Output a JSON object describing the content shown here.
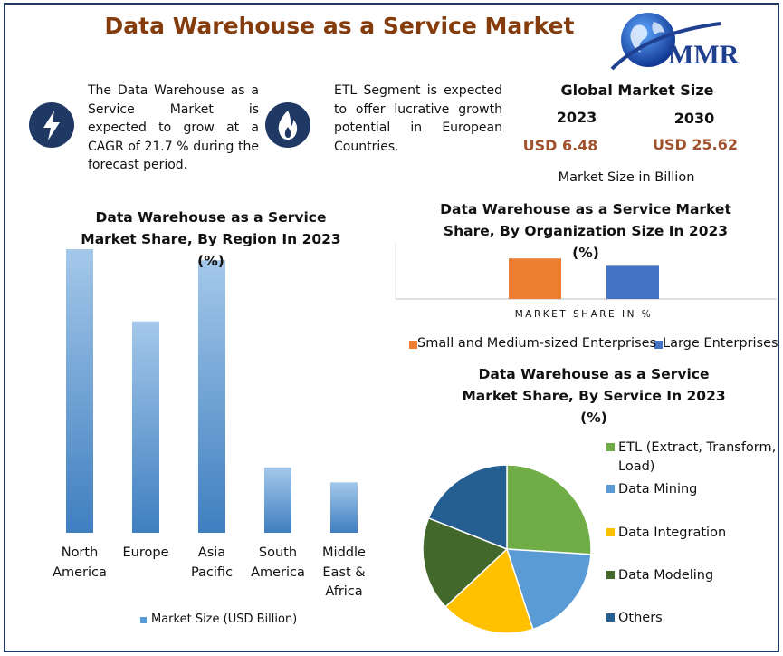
{
  "title": "Data Warehouse as a Service Market",
  "logo": "MMR",
  "highlights": [
    "The Data Warehouse as a Service Market is expected to grow at a CAGR of 21.7 % during the forecast period.",
    "ETL Segment is expected to offer lucrative growth potential in European Countries."
  ],
  "market_size": {
    "heading": "Global Market Size",
    "years": [
      "2023",
      "2030"
    ],
    "amounts": [
      "USD 6.48",
      "USD 25.62"
    ],
    "note": "Market Size in Billion"
  },
  "chart_data": [
    {
      "type": "bar",
      "title": "Data Warehouse as a Service Market Share, By Region In 2023 (%)",
      "categories": [
        "North\nAmerica",
        "Europe",
        "Asia\nPacific",
        "South\nAmerica",
        "Middle\nEast &\nAfrica"
      ],
      "series": [
        {
          "name": "Market Size (USD Billion)",
          "color": "#5b9bd5",
          "values": [
            2.08,
            1.55,
            2.0,
            0.48,
            0.37
          ]
        }
      ],
      "ylim": [
        0,
        2.2
      ]
    },
    {
      "type": "bar",
      "title": "Data Warehouse as a Service Market Share, By Organization Size In 2023 (%)",
      "xlabel": "MARKET SHARE IN %",
      "series": [
        {
          "name": "Small and Medium-sized Enterprises",
          "color": "#ed7d31",
          "values": [
            55
          ]
        },
        {
          "name": "Large Enterprises",
          "color": "#4472c4",
          "values": [
            45
          ]
        }
      ],
      "ylim": [
        0,
        70
      ]
    },
    {
      "type": "pie",
      "title": "Data Warehouse as a Service Market Share, By Service In 2023 (%)",
      "categories": [
        "ETL (Extract, Transform, Load)",
        "Data Mining",
        "Data Integration",
        "Data Modeling",
        "Others"
      ],
      "values": [
        26,
        19,
        18,
        18,
        19
      ],
      "colors": [
        "#70ad47",
        "#5b9bd5",
        "#ffc000",
        "#43682b",
        "#255e91"
      ]
    }
  ]
}
